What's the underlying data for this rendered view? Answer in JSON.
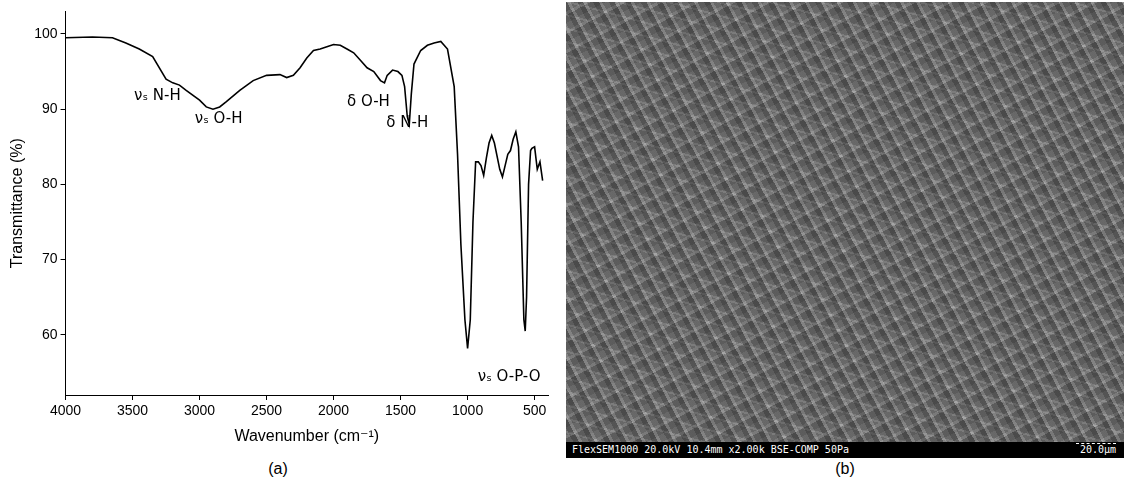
{
  "chart_data": {
    "type": "line",
    "panel_label": "(a)",
    "color": "#000000",
    "grid": false,
    "x_label": "Wavenumber (cm⁻¹)",
    "y_label": "Transmittance (%)",
    "xlim": [
      4000,
      400
    ],
    "xticks": [
      4000,
      3500,
      3000,
      2500,
      2000,
      1500,
      1000,
      500
    ],
    "ylim": [
      52,
      103
    ],
    "yticks": [
      60,
      70,
      80,
      90,
      100
    ],
    "x": [
      4000,
      3800,
      3650,
      3550,
      3450,
      3350,
      3250,
      3200,
      3150,
      3100,
      3000,
      2950,
      2900,
      2850,
      2800,
      2700,
      2600,
      2500,
      2400,
      2350,
      2300,
      2250,
      2200,
      2150,
      2100,
      2050,
      2000,
      1950,
      1900,
      1850,
      1800,
      1750,
      1700,
      1650,
      1620,
      1600,
      1560,
      1520,
      1490,
      1470,
      1450,
      1435,
      1420,
      1400,
      1350,
      1300,
      1250,
      1200,
      1150,
      1100,
      1075,
      1050,
      1020,
      1000,
      980,
      960,
      940,
      920,
      900,
      880,
      860,
      840,
      820,
      800,
      760,
      740,
      720,
      700,
      680,
      660,
      640,
      620,
      600,
      580,
      570,
      560,
      545,
      530,
      520,
      500,
      480,
      460,
      440
    ],
    "values": [
      99.5,
      99.6,
      99.5,
      98.8,
      98.0,
      97.0,
      94.0,
      93.5,
      93.2,
      92.5,
      91.2,
      90.3,
      90.0,
      90.3,
      91.0,
      92.5,
      93.8,
      94.5,
      94.6,
      94.2,
      94.5,
      95.5,
      96.8,
      97.8,
      98.0,
      98.3,
      98.6,
      98.5,
      98.0,
      97.5,
      96.5,
      95.5,
      95.0,
      93.8,
      93.5,
      94.5,
      95.2,
      95.0,
      94.5,
      93.0,
      89.0,
      88.0,
      92.0,
      96.0,
      97.8,
      98.5,
      98.8,
      99.0,
      98.0,
      93.0,
      84.0,
      72.0,
      62.0,
      58.2,
      62.0,
      75.0,
      83.0,
      83.0,
      82.5,
      81.2,
      83.5,
      85.5,
      86.5,
      85.5,
      82.0,
      81.0,
      82.5,
      84.0,
      84.5,
      86.0,
      87.0,
      85.0,
      75.0,
      62.0,
      60.5,
      65.0,
      80.0,
      84.5,
      84.8,
      85.0,
      82.0,
      83.0,
      80.5
    ],
    "annotations": [
      {
        "text": "νₛ N-H",
        "x": 3315,
        "y": 91.8
      },
      {
        "text": "νₛ O-H",
        "x": 2858,
        "y": 88.7
      },
      {
        "text": "δ O-H",
        "x": 1740,
        "y": 91.0
      },
      {
        "text": "δ N-H",
        "x": 1450,
        "y": 88.2
      },
      {
        "text": "νₛ O-P-O",
        "x": 690,
        "y": 54.4
      }
    ]
  },
  "image_panel": {
    "panel_label": "(b)",
    "info": "FlexSEM1000 20.0kV 10.4mm x2.00k BSE-COMP 50Pa",
    "scale_bar": "20.0μm"
  }
}
